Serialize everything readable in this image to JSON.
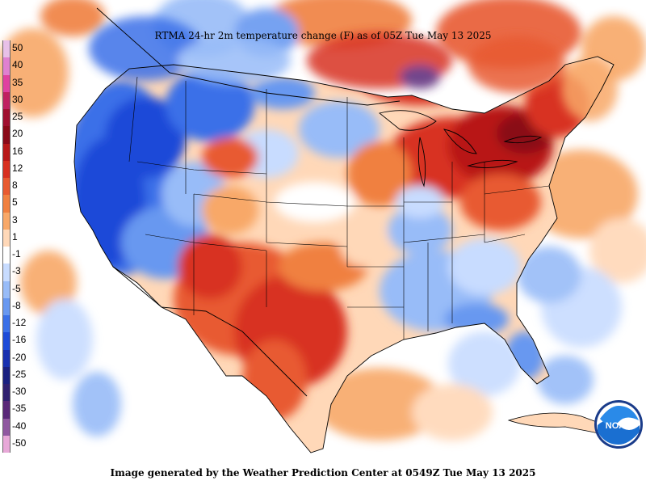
{
  "map": {
    "title": "RTMA 24-hr 2m temperature change (F) as of 05Z  Tue May 13 2025",
    "legend": [
      {
        "label": "50",
        "color": "#e8c0e8"
      },
      {
        "label": "40",
        "color": "#e080d0"
      },
      {
        "label": "35",
        "color": "#e040a0"
      },
      {
        "label": "30",
        "color": "#c02060"
      },
      {
        "label": "25",
        "color": "#a01030"
      },
      {
        "label": "20",
        "color": "#8a0a18"
      },
      {
        "label": "16",
        "color": "#b81818"
      },
      {
        "label": "12",
        "color": "#d83020"
      },
      {
        "label": "8",
        "color": "#e85a30"
      },
      {
        "label": "5",
        "color": "#f08040"
      },
      {
        "label": "3",
        "color": "#f8a868"
      },
      {
        "label": "1",
        "color": "#ffd8b8"
      },
      {
        "label": "-1",
        "color": "#ffffff"
      },
      {
        "label": "-3",
        "color": "#c8dcff"
      },
      {
        "label": "-5",
        "color": "#98bcf8"
      },
      {
        "label": "-8",
        "color": "#6898f0"
      },
      {
        "label": "-12",
        "color": "#3a70e8"
      },
      {
        "label": "-16",
        "color": "#1c4ad8"
      },
      {
        "label": "-20",
        "color": "#1830b0"
      },
      {
        "label": "-25",
        "color": "#1a2080"
      },
      {
        "label": "-30",
        "color": "#302070"
      },
      {
        "label": "-35",
        "color": "#5a2878"
      },
      {
        "label": "-40",
        "color": "#9058a0"
      },
      {
        "label": "-50",
        "color": "#e8a8d8"
      }
    ]
  },
  "footer": {
    "text": "Image generated by the Weather Prediction Center at 0549Z Tue May 13 2025"
  },
  "logo": {
    "text": "NOAA",
    "icon": "noaa-logo-icon"
  }
}
